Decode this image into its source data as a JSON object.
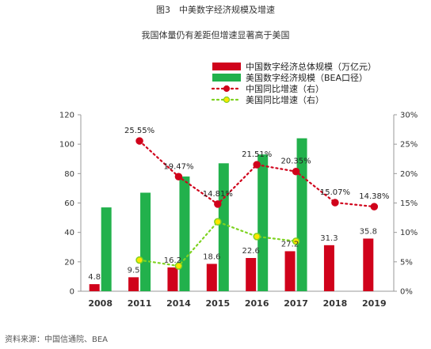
{
  "figure_title": "图3　中美数字经济规模及增速",
  "source": "资料来源：中国信通院、BEA",
  "chart_data": {
    "type": "bar",
    "title": "我国体量仍有差距但增速显著高于美国",
    "categories": [
      "2008",
      "2011",
      "2014",
      "2015",
      "2016",
      "2017",
      "2018",
      "2019"
    ],
    "series": [
      {
        "name": "中国数字经济总体规模（万亿元）",
        "kind": "bar",
        "axis": "left",
        "color": "#d0021b",
        "values": [
          4.8,
          9.5,
          16.2,
          18.6,
          22.6,
          27.2,
          31.3,
          35.8
        ]
      },
      {
        "name": "美国数字经济规模（BEA口径）",
        "kind": "bar",
        "axis": "left",
        "color": "#22b14c",
        "values": [
          57,
          67,
          78,
          87,
          93,
          104,
          null,
          null
        ]
      },
      {
        "name": "中国同比增速（右）",
        "kind": "line",
        "axis": "right",
        "color": "#d0021b",
        "values": [
          null,
          25.55,
          19.47,
          14.81,
          21.51,
          20.35,
          15.07,
          14.38
        ]
      },
      {
        "name": "美国同比增速（右）",
        "kind": "line",
        "axis": "right",
        "color": "#7ed321",
        "values": [
          null,
          5.3,
          4.3,
          11.8,
          9.3,
          8.5,
          null,
          null
        ]
      }
    ],
    "bar_labels": [
      "4.8",
      "9.5",
      "16.2",
      "18.6",
      "22.6",
      "27.2",
      "31.3",
      "35.8"
    ],
    "line_labels": [
      "",
      "25.55%",
      "19.47%",
      "14.81%",
      "21.51%",
      "20.35%",
      "15.07%",
      "14.38%"
    ],
    "y_left": {
      "min": 0,
      "max": 120,
      "ticks": [
        "0",
        "20",
        "40",
        "60",
        "80",
        "100",
        "120"
      ]
    },
    "y_right": {
      "min": 0,
      "max": 30,
      "ticks": [
        "0%",
        "5%",
        "10%",
        "15%",
        "20%",
        "25%",
        "30%"
      ]
    },
    "legend_position": "top-right",
    "grid": false
  }
}
